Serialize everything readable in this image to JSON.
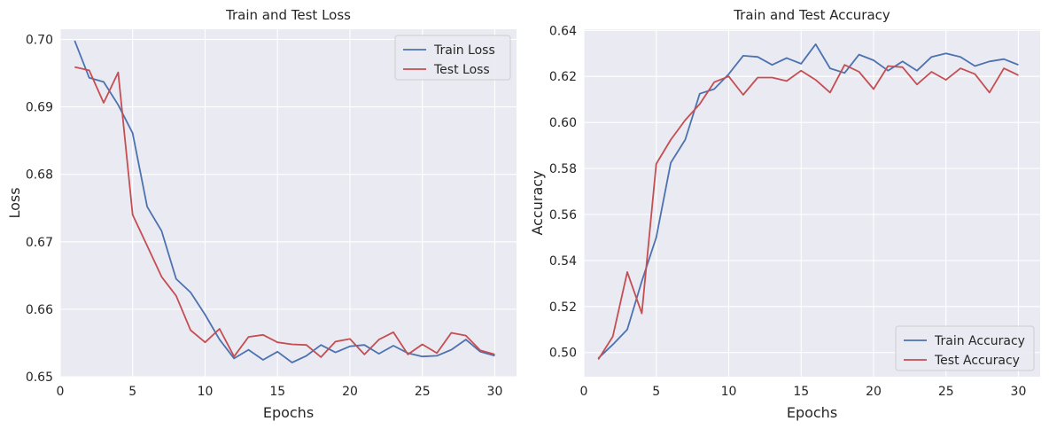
{
  "chart_data": [
    {
      "type": "line",
      "title": "Train and Test Loss",
      "xlabel": "Epochs",
      "ylabel": "Loss",
      "xlim": [
        0,
        31.5
      ],
      "ylim": [
        0.65,
        0.7015
      ],
      "xticks": [
        0,
        5,
        10,
        15,
        20,
        25,
        30
      ],
      "yticks": [
        0.65,
        0.66,
        0.67,
        0.68,
        0.69,
        0.7
      ],
      "ytick_labels": [
        "0.65",
        "0.66",
        "0.67",
        "0.68",
        "0.69",
        "0.70"
      ],
      "grid": true,
      "legend_position": "top-right",
      "x": [
        1,
        2,
        3,
        4,
        5,
        6,
        7,
        8,
        9,
        10,
        11,
        12,
        13,
        14,
        15,
        16,
        17,
        18,
        19,
        20,
        21,
        22,
        23,
        24,
        25,
        26,
        27,
        28,
        29,
        30
      ],
      "series": [
        {
          "name": "Train Loss",
          "color": "#4c72b0",
          "values": [
            0.6998,
            0.6943,
            0.6937,
            0.6903,
            0.6861,
            0.6752,
            0.6716,
            0.6645,
            0.6625,
            0.6592,
            0.6555,
            0.6527,
            0.654,
            0.6525,
            0.6537,
            0.6521,
            0.6531,
            0.6547,
            0.6536,
            0.6545,
            0.6547,
            0.6534,
            0.6546,
            0.6535,
            0.653,
            0.6531,
            0.654,
            0.6555,
            0.6537,
            0.6531
          ]
        },
        {
          "name": "Test Loss",
          "color": "#c44e52",
          "values": [
            0.6959,
            0.6954,
            0.6906,
            0.6951,
            0.674,
            0.6694,
            0.6648,
            0.662,
            0.6569,
            0.6551,
            0.6571,
            0.653,
            0.6559,
            0.6562,
            0.6551,
            0.6548,
            0.6547,
            0.6529,
            0.6552,
            0.6556,
            0.6533,
            0.6555,
            0.6566,
            0.6533,
            0.6548,
            0.6535,
            0.6565,
            0.6561,
            0.6539,
            0.6533
          ]
        }
      ]
    },
    {
      "type": "line",
      "title": "Train and Test Accuracy",
      "xlabel": "Epochs",
      "ylabel": "Accuracy",
      "xlim": [
        0,
        31.5
      ],
      "ylim": [
        0.4895,
        0.6405
      ],
      "xticks": [
        0,
        5,
        10,
        15,
        20,
        25,
        30
      ],
      "yticks": [
        0.5,
        0.52,
        0.54,
        0.56,
        0.58,
        0.6,
        0.62,
        0.64
      ],
      "ytick_labels": [
        "0.50",
        "0.52",
        "0.54",
        "0.56",
        "0.58",
        "0.60",
        "0.62",
        "0.64"
      ],
      "grid": true,
      "legend_position": "bottom-right",
      "x": [
        1,
        2,
        3,
        4,
        5,
        6,
        7,
        8,
        9,
        10,
        11,
        12,
        13,
        14,
        15,
        16,
        17,
        18,
        19,
        20,
        21,
        22,
        23,
        24,
        25,
        26,
        27,
        28,
        29,
        30
      ],
      "series": [
        {
          "name": "Train Accuracy",
          "color": "#4c72b0",
          "values": [
            0.4975,
            0.5035,
            0.51,
            0.531,
            0.55,
            0.5825,
            0.5925,
            0.6125,
            0.6145,
            0.621,
            0.629,
            0.6285,
            0.625,
            0.628,
            0.6255,
            0.634,
            0.6235,
            0.6215,
            0.6295,
            0.627,
            0.6225,
            0.6265,
            0.6225,
            0.6285,
            0.63,
            0.6285,
            0.6245,
            0.6265,
            0.6275,
            0.625
          ]
        },
        {
          "name": "Test Accuracy",
          "color": "#c44e52",
          "values": [
            0.497,
            0.507,
            0.535,
            0.517,
            0.582,
            0.5925,
            0.601,
            0.608,
            0.6175,
            0.62,
            0.612,
            0.6195,
            0.6195,
            0.618,
            0.6225,
            0.6185,
            0.613,
            0.625,
            0.622,
            0.6145,
            0.6245,
            0.624,
            0.6165,
            0.622,
            0.6185,
            0.6235,
            0.621,
            0.613,
            0.6235,
            0.6205
          ]
        }
      ]
    }
  ]
}
